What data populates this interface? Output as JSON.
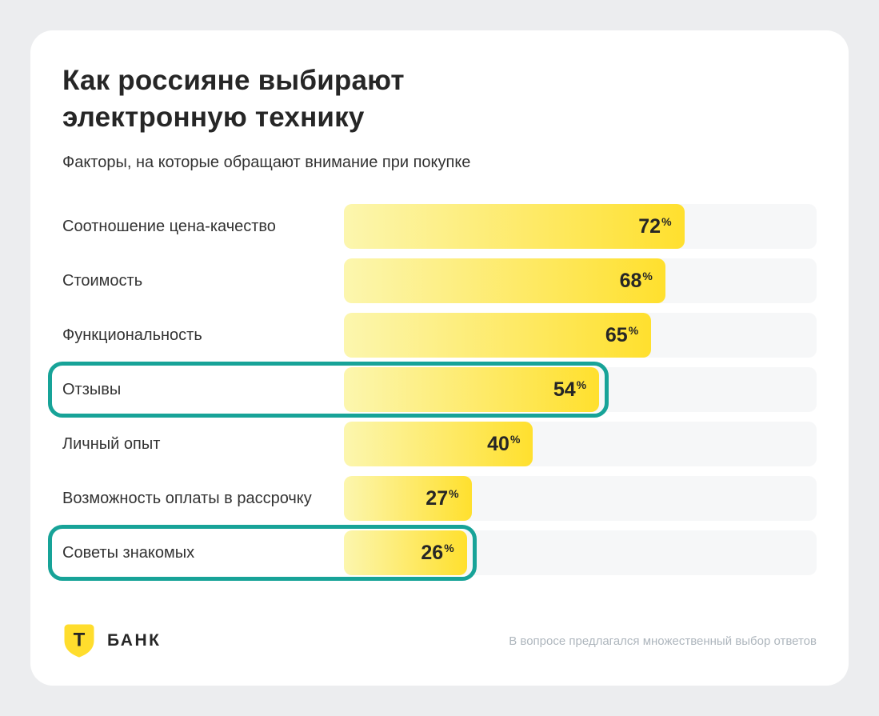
{
  "title": "Как россияне выбирают электронную технику",
  "subtitle": "Факторы, на которые обращают внимание при покупке",
  "footer": {
    "logo_letter": "Т",
    "brand": "БАНК",
    "note": "В вопросе предлагался множественный выбор ответов"
  },
  "colors": {
    "accent_yellow": "#FFDD2D",
    "bar_gradient_start": "#FCF6AE",
    "bar_gradient_end": "#FFE02E",
    "highlight_teal": "#17A398",
    "track_gray": "#F6F7F8",
    "text_dark": "#262626",
    "note_gray": "#AEB6BD"
  },
  "chart_data": {
    "type": "bar",
    "orientation": "horizontal",
    "title": "Как россияне выбирают электронную технику",
    "subtitle": "Факторы, на которые обращают внимание при покупке",
    "categories": [
      "Соотношение цена-качество",
      "Стоимость",
      "Функциональность",
      "Отзывы",
      "Личный опыт",
      "Возможность оплаты в рассрочку",
      "Советы знакомых"
    ],
    "values": [
      72,
      68,
      65,
      54,
      40,
      27,
      26
    ],
    "unit": "%",
    "xlim": [
      0,
      100
    ],
    "highlighted": [
      "Отзывы",
      "Советы знакомых"
    ],
    "grid": false,
    "legend": false,
    "value_labels": "inside-end",
    "annotation": "В вопросе предлагался множественный выбор ответов"
  }
}
